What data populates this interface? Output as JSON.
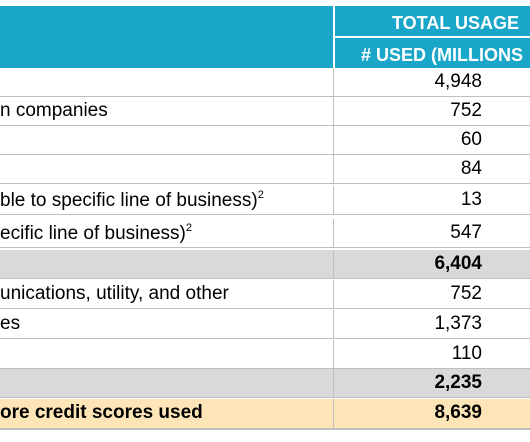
{
  "header": {
    "title": "TOTAL USAGE",
    "subtitle": "# USED (MILLIONS"
  },
  "rows": [
    {
      "label": "",
      "value": "4,948"
    },
    {
      "label": "n companies",
      "value": "752"
    },
    {
      "label": "",
      "value": "60"
    },
    {
      "label": "",
      "value": "84"
    },
    {
      "label": "ble to specific line of business)",
      "sup": "2",
      "value": "13"
    },
    {
      "label": "ecific line of business)",
      "sup": "2",
      "value": "547"
    },
    {
      "label": "",
      "value": "6,404"
    },
    {
      "label": "unications, utility, and other",
      "value": "752"
    },
    {
      "label": "es",
      "value": "1,373"
    },
    {
      "label": "",
      "value": "110"
    },
    {
      "label": "",
      "value": "2,235"
    },
    {
      "label": "ore credit scores used",
      "value": "8,639"
    }
  ]
}
